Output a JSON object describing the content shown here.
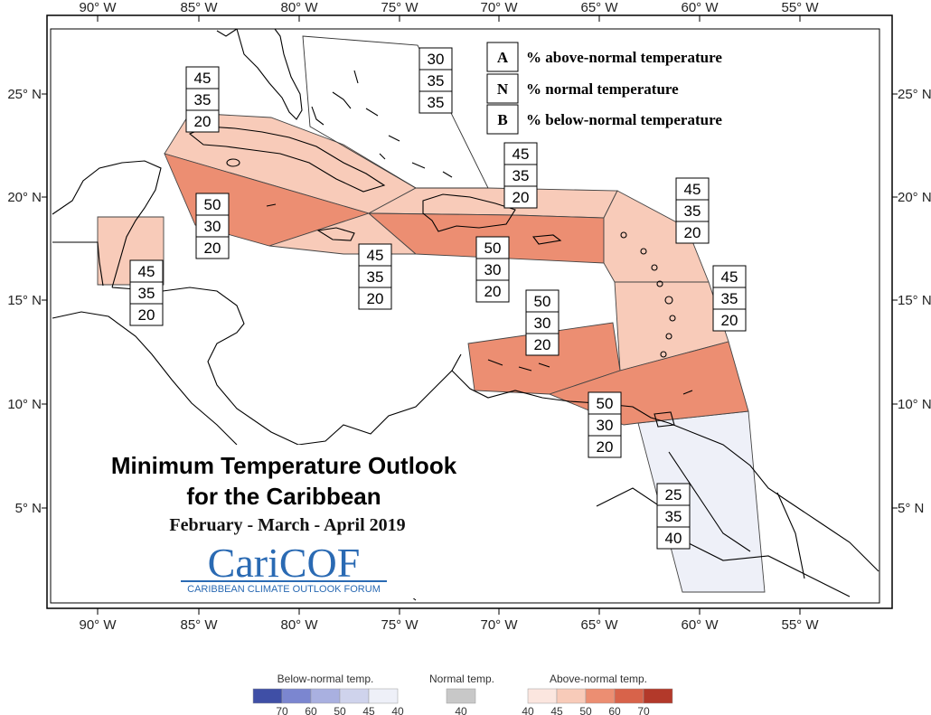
{
  "axes": {
    "longitude_ticks": [
      "90° W",
      "85° W",
      "80° W",
      "75° W",
      "70° W",
      "65° W",
      "60° W",
      "55° W"
    ],
    "latitude_ticks": [
      "25° N",
      "20° N",
      "15° N",
      "10° N",
      "5° N"
    ]
  },
  "legend": {
    "rows": [
      {
        "key": "A",
        "text": "% above-normal temperature"
      },
      {
        "key": "N",
        "text": "% normal temperature"
      },
      {
        "key": "B",
        "text": "% below-normal temperature"
      }
    ]
  },
  "title": {
    "line1": "Minimum Temperature Outlook",
    "line2": "for the Caribbean",
    "period": "February - March - April 2019"
  },
  "logo": {
    "main": "CariCOF",
    "sub": "CARIBBEAN CLIMATE OUTLOOK FORUM"
  },
  "colors": {
    "above_40": "#fbe6df",
    "above_45": "#f8cbb9",
    "above_50": "#ec8e72",
    "above_60": "#d8634a",
    "above_70": "#b3392a",
    "normal_40": "#c8c8c8",
    "below_40": "#eef0f8",
    "below_45": "#cfd3ec",
    "below_50": "#a9b0e0",
    "below_60": "#7b86d0",
    "below_70": "#3f4fa6"
  },
  "regions": [
    {
      "name": "bahamas",
      "A": "30",
      "N": "35",
      "B": "35",
      "fill": "none"
    },
    {
      "name": "cuba",
      "A": "45",
      "N": "35",
      "B": "20",
      "fill": "above_45"
    },
    {
      "name": "cayman-jamaica-south",
      "A": "50",
      "N": "30",
      "B": "20",
      "fill": "above_50"
    },
    {
      "name": "belize",
      "A": "45",
      "N": "35",
      "B": "20",
      "fill": "above_45"
    },
    {
      "name": "jamaica",
      "A": "45",
      "N": "35",
      "B": "20",
      "fill": "above_45"
    },
    {
      "name": "hispaniola-north",
      "A": "45",
      "N": "35",
      "B": "20",
      "fill": "above_45"
    },
    {
      "name": "hispaniola-puerto-rico",
      "A": "50",
      "N": "30",
      "B": "20",
      "fill": "above_50"
    },
    {
      "name": "leeward-islands",
      "A": "45",
      "N": "35",
      "B": "20",
      "fill": "above_45"
    },
    {
      "name": "windward-islands",
      "A": "45",
      "N": "35",
      "B": "20",
      "fill": "above_45"
    },
    {
      "name": "abc-islands",
      "A": "50",
      "N": "30",
      "B": "20",
      "fill": "above_50"
    },
    {
      "name": "trinidad-tobago",
      "A": "50",
      "N": "30",
      "B": "20",
      "fill": "above_50"
    },
    {
      "name": "guianas",
      "A": "25",
      "N": "35",
      "B": "40",
      "fill": "below_40"
    }
  ],
  "scale": {
    "below": {
      "title": "Below-normal temp.",
      "ticks": [
        "70",
        "60",
        "50",
        "45",
        "40"
      ]
    },
    "normal": {
      "title": "Normal temp.",
      "ticks": [
        "40"
      ]
    },
    "above": {
      "title": "Above-normal temp.",
      "ticks": [
        "40",
        "45",
        "50",
        "60",
        "70"
      ]
    }
  }
}
